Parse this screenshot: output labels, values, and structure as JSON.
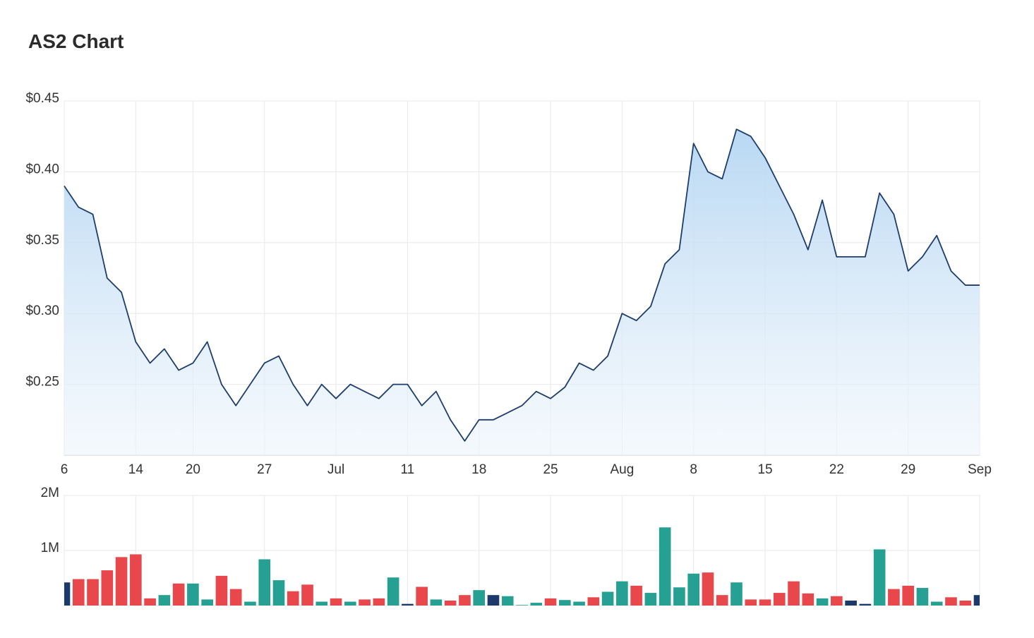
{
  "header": {
    "title": "AS2 Chart"
  },
  "colors": {
    "line": "#1c3d6e",
    "up": "#26a093",
    "down": "#e8474b",
    "flat": "#1b3a6b",
    "grid": "#e8e8e8"
  },
  "chart_data": [
    {
      "type": "area",
      "name": "price",
      "ylim": [
        0.2,
        0.45
      ],
      "y_ticks": [
        "$0.45",
        "$0.40",
        "$0.35",
        "$0.30",
        "$0.25"
      ],
      "y_tick_values": [
        0.45,
        0.4,
        0.35,
        0.3,
        0.25
      ],
      "x_tick_labels": [
        "6",
        "14",
        "20",
        "27",
        "Jul",
        "11",
        "18",
        "25",
        "Aug",
        "8",
        "15",
        "22",
        "29",
        "Sep"
      ],
      "x_tick_index": [
        0,
        5,
        9,
        14,
        19,
        24,
        29,
        34,
        39,
        44,
        49,
        54,
        59,
        64
      ],
      "values": [
        0.39,
        0.375,
        0.37,
        0.325,
        0.315,
        0.28,
        0.265,
        0.275,
        0.26,
        0.265,
        0.28,
        0.25,
        0.235,
        0.25,
        0.265,
        0.27,
        0.25,
        0.235,
        0.25,
        0.24,
        0.25,
        0.245,
        0.24,
        0.25,
        0.25,
        0.235,
        0.245,
        0.225,
        0.21,
        0.225,
        0.225,
        0.23,
        0.235,
        0.245,
        0.24,
        0.248,
        0.265,
        0.26,
        0.27,
        0.3,
        0.295,
        0.305,
        0.335,
        0.345,
        0.42,
        0.4,
        0.395,
        0.43,
        0.425,
        0.41,
        0.39,
        0.37,
        0.345,
        0.38,
        0.34,
        0.34,
        0.34,
        0.385,
        0.37,
        0.33,
        0.34,
        0.355,
        0.33,
        0.32,
        0.32
      ]
    },
    {
      "type": "bar",
      "name": "volume",
      "ylim": [
        0,
        2000000
      ],
      "y_ticks": [
        "2M",
        "1M"
      ],
      "y_tick_values": [
        2000000,
        1000000
      ],
      "values": [
        420000,
        480000,
        480000,
        640000,
        880000,
        930000,
        130000,
        190000,
        400000,
        400000,
        110000,
        540000,
        300000,
        70000,
        840000,
        460000,
        260000,
        380000,
        70000,
        130000,
        70000,
        110000,
        130000,
        510000,
        30000,
        340000,
        110000,
        90000,
        190000,
        280000,
        190000,
        170000,
        10000,
        50000,
        130000,
        100000,
        70000,
        150000,
        250000,
        440000,
        360000,
        230000,
        1420000,
        330000,
        580000,
        600000,
        190000,
        420000,
        110000,
        110000,
        230000,
        440000,
        220000,
        130000,
        170000,
        90000,
        30000,
        1020000,
        300000,
        360000,
        320000,
        70000,
        150000,
        90000,
        190000
      ],
      "colors": [
        "flat",
        "down",
        "down",
        "down",
        "down",
        "down",
        "down",
        "up",
        "down",
        "up",
        "up",
        "down",
        "down",
        "up",
        "up",
        "up",
        "down",
        "down",
        "up",
        "down",
        "up",
        "down",
        "down",
        "up",
        "flat",
        "down",
        "up",
        "down",
        "down",
        "up",
        "flat",
        "up",
        "up",
        "up",
        "down",
        "up",
        "up",
        "down",
        "up",
        "up",
        "down",
        "up",
        "up",
        "up",
        "up",
        "down",
        "down",
        "up",
        "down",
        "down",
        "down",
        "down",
        "down",
        "up",
        "down",
        "flat",
        "flat",
        "up",
        "down",
        "down",
        "up",
        "up",
        "down",
        "down",
        "flat"
      ]
    }
  ]
}
